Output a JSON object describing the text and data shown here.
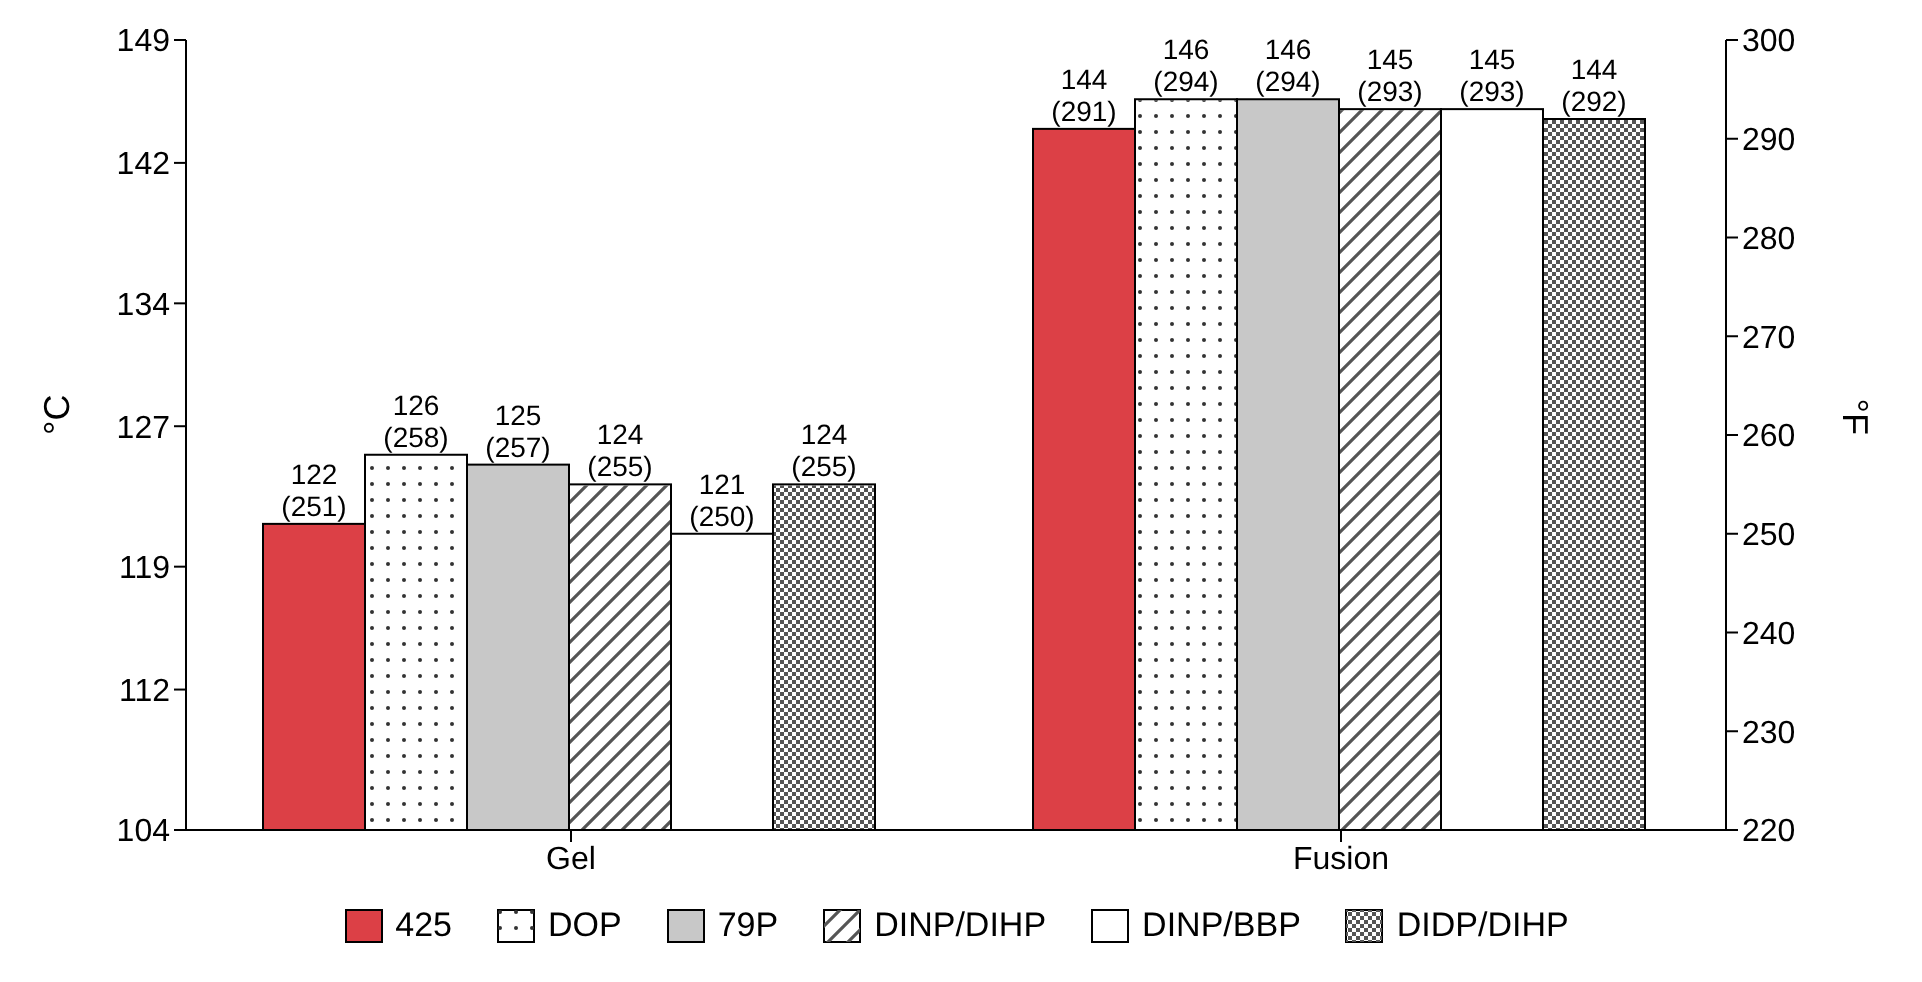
{
  "chart_data": {
    "type": "bar",
    "categories": [
      "Gel",
      "Fusion"
    ],
    "ylabel": "°C",
    "y2label": "°F",
    "ylim": [
      104,
      149
    ],
    "yticks": [
      104,
      112,
      119,
      127,
      134,
      142,
      149
    ],
    "y2lim": [
      220,
      300
    ],
    "y2ticks": [
      220,
      230,
      240,
      250,
      260,
      270,
      280,
      290,
      300
    ],
    "grid": false,
    "legend": "bottom",
    "series": [
      {
        "name": "425",
        "color": "#dc4046",
        "axis": "y2",
        "values": [
          251,
          291
        ],
        "value_labels": [
          "122 (251)",
          "144 (291)"
        ]
      },
      {
        "name": "DOP",
        "color": "#ffffff",
        "axis": "y2",
        "values": [
          258,
          294
        ],
        "value_labels": [
          "126 (258)",
          "146 (294)"
        ]
      },
      {
        "name": "79P",
        "color": "#c8c8c8",
        "axis": "y2",
        "values": [
          257,
          294
        ],
        "value_labels": [
          "125 (257)",
          "146 (294)"
        ]
      },
      {
        "name": "DINP/DIHP",
        "color": "#ffffff",
        "axis": "y2",
        "values": [
          255,
          293
        ],
        "value_labels": [
          "124 (255)",
          "145 (293)"
        ]
      },
      {
        "name": "DINP/BBP",
        "color": "#ffffff",
        "axis": "y2",
        "values": [
          250,
          293
        ],
        "value_labels": [
          "121 (250)",
          "145 (293)"
        ]
      },
      {
        "name": "DIDP/DIHP",
        "color": "#ffffff",
        "axis": "y2",
        "values": [
          255,
          292
        ],
        "value_labels": [
          "124 (255)",
          "144 (292)"
        ]
      }
    ]
  }
}
